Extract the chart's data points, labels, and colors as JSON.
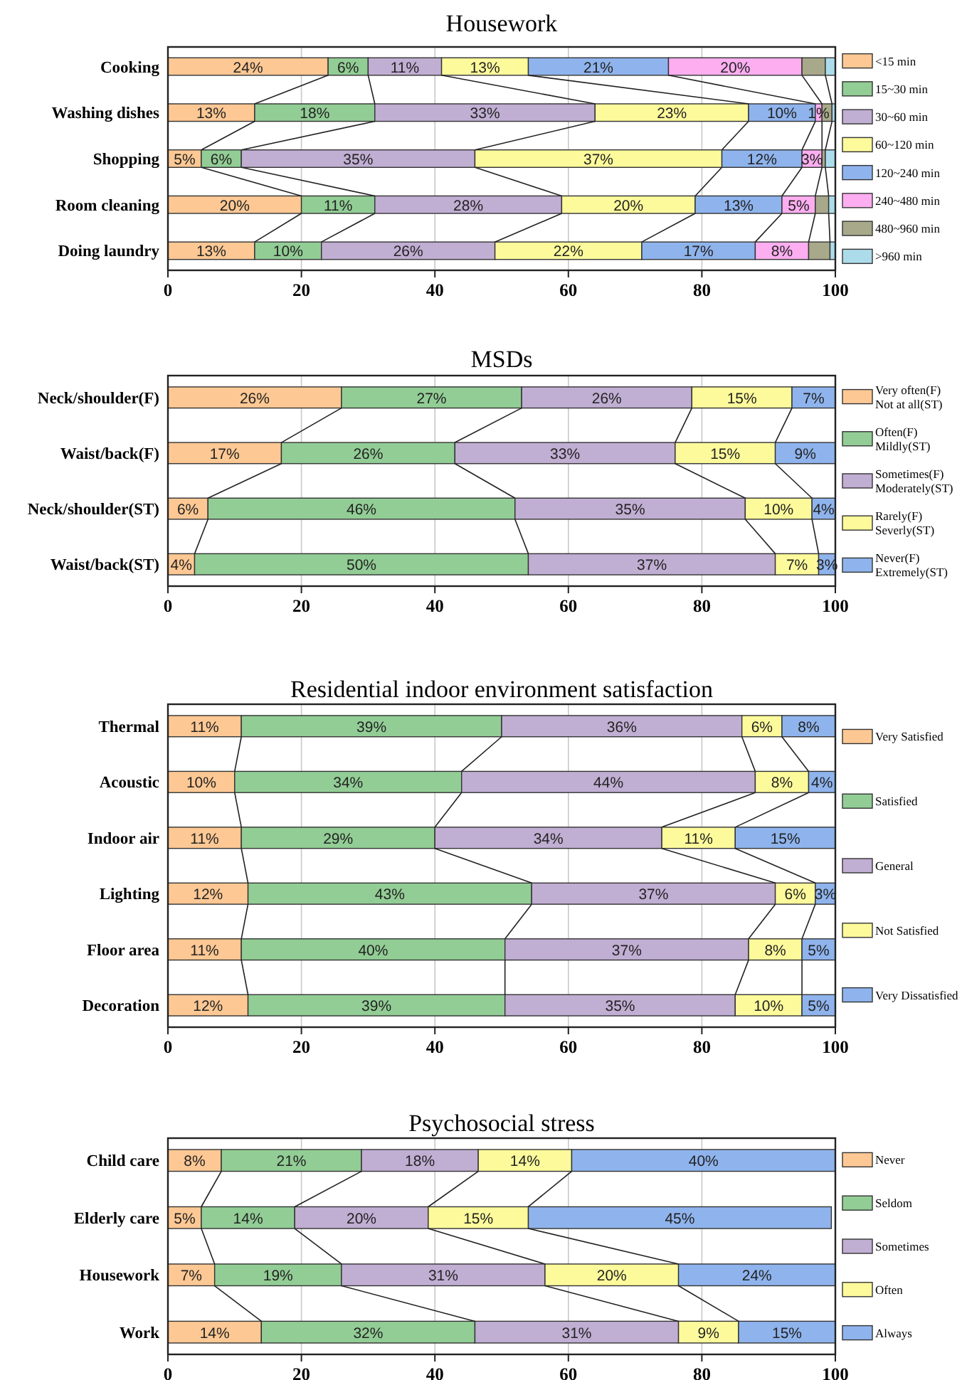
{
  "chart_data": [
    {
      "type": "bar",
      "orientation": "horizontal",
      "stacked": true,
      "title": "Housework",
      "categories": [
        "Cooking",
        "Washing dishes",
        "Shopping",
        "Room cleaning",
        "Doing laundry"
      ],
      "xlim": [
        0,
        100
      ],
      "xticks": [
        0,
        20,
        40,
        60,
        80,
        100
      ],
      "grid": "x",
      "legend": "right",
      "series": [
        {
          "name": "<15 min",
          "color": "#fdc894",
          "values": [
            24,
            13,
            5,
            20,
            13
          ],
          "value_labels": [
            "24%",
            "13%",
            "5%",
            "20%",
            "13%"
          ]
        },
        {
          "name": "15~30 min",
          "color": "#92cd95",
          "values": [
            6,
            18,
            6,
            11,
            10
          ],
          "value_labels": [
            "6%",
            "18%",
            "6%",
            "11%",
            "10%"
          ]
        },
        {
          "name": "30~60 min",
          "color": "#c1aed3",
          "values": [
            11,
            33,
            35,
            28,
            26
          ],
          "value_labels": [
            "11%",
            "33%",
            "35%",
            "28%",
            "26%"
          ]
        },
        {
          "name": "60~120 min",
          "color": "#fdfa9c",
          "values": [
            13,
            23,
            37,
            20,
            22
          ],
          "value_labels": [
            "13%",
            "23%",
            "37%",
            "20%",
            "22%"
          ]
        },
        {
          "name": "120~240 min",
          "color": "#8fb4ed",
          "values": [
            21,
            10,
            12,
            13,
            17
          ],
          "value_labels": [
            "21%",
            "10%",
            "12%",
            "13%",
            "17%"
          ]
        },
        {
          "name": "240~480 min",
          "color": "#fcaef0",
          "values": [
            20,
            1,
            3,
            5,
            8
          ],
          "value_labels": [
            "20%",
            "1%",
            "3%",
            "5%",
            "8%"
          ]
        },
        {
          "name": "480~960 min",
          "color": "#a8a98a",
          "values": [
            3.5,
            1.5,
            0.5,
            2,
            3.2
          ],
          "value_labels": [
            null,
            null,
            null,
            null,
            null
          ]
        },
        {
          "name": ">960 min",
          "color": "#acdcea",
          "values": [
            1.5,
            0.5,
            1.5,
            1,
            0.8
          ],
          "value_labels": [
            null,
            null,
            null,
            null,
            null
          ]
        }
      ]
    },
    {
      "type": "bar",
      "orientation": "horizontal",
      "stacked": true,
      "title": "MSDs",
      "categories": [
        "Neck/shoulder(F)",
        "Waist/back(F)",
        "Neck/shoulder(ST)",
        "Waist/back(ST)"
      ],
      "xlim": [
        0,
        100
      ],
      "xticks": [
        0,
        20,
        40,
        60,
        80,
        100
      ],
      "grid": "x",
      "legend": "right",
      "series": [
        {
          "name": "Very often(F)\nNot at all(ST)",
          "color": "#fdc894",
          "values": [
            26,
            17,
            6,
            4
          ],
          "value_labels": [
            "26%",
            "17%",
            "6%",
            "4%"
          ]
        },
        {
          "name": "Often(F)\nMildly(ST)",
          "color": "#92cd95",
          "values": [
            27,
            26,
            46,
            50
          ],
          "value_labels": [
            "27%",
            "26%",
            "46%",
            "50%"
          ]
        },
        {
          "name": "Sometimes(F)\nModerately(ST)",
          "color": "#c1aed3",
          "values": [
            25.5,
            33,
            34.5,
            37
          ],
          "value_labels": [
            "26%",
            "33%",
            "35%",
            "37%"
          ]
        },
        {
          "name": "Rarely(F)\nSeverly(ST)",
          "color": "#fdfa9c",
          "values": [
            15,
            15,
            10,
            6.5
          ],
          "value_labels": [
            "15%",
            "15%",
            "10%",
            "7%"
          ]
        },
        {
          "name": "Never(F)\nExtremely(ST)",
          "color": "#8fb4ed",
          "values": [
            6.5,
            9,
            3.5,
            2.5
          ],
          "value_labels": [
            "7%",
            "9%",
            "4%",
            "3%"
          ]
        }
      ]
    },
    {
      "type": "bar",
      "orientation": "horizontal",
      "stacked": true,
      "title": "Residential indoor environment satisfaction",
      "categories": [
        "Thermal",
        "Acoustic",
        "Indoor air",
        "Lighting",
        "Floor area",
        "Decoration"
      ],
      "xlim": [
        0,
        100
      ],
      "xticks": [
        0,
        20,
        40,
        60,
        80,
        100
      ],
      "grid": "x",
      "legend": "right",
      "series": [
        {
          "name": "Very Satisfied",
          "color": "#fdc894",
          "values": [
            11,
            10,
            11,
            12,
            11,
            12
          ],
          "value_labels": [
            "11%",
            "10%",
            "11%",
            "12%",
            "11%",
            "12%"
          ]
        },
        {
          "name": "Satisfied",
          "color": "#92cd95",
          "values": [
            39,
            34,
            29,
            42.5,
            39.5,
            38.5
          ],
          "value_labels": [
            "39%",
            "34%",
            "29%",
            "43%",
            "40%",
            "39%"
          ]
        },
        {
          "name": "General",
          "color": "#c1aed3",
          "values": [
            36,
            44,
            34,
            36.5,
            36.5,
            34.5
          ],
          "value_labels": [
            "36%",
            "44%",
            "34%",
            "37%",
            "37%",
            "35%"
          ]
        },
        {
          "name": "Not Satisfied",
          "color": "#fdfa9c",
          "values": [
            6,
            8,
            11,
            6,
            8,
            10
          ],
          "value_labels": [
            "6%",
            "8%",
            "11%",
            "6%",
            "8%",
            "10%"
          ]
        },
        {
          "name": "Very Dissatisfied",
          "color": "#8fb4ed",
          "values": [
            8,
            4,
            15,
            3,
            5,
            5
          ],
          "value_labels": [
            "8%",
            "4%",
            "15%",
            "3%",
            "5%",
            "5%"
          ]
        }
      ]
    },
    {
      "type": "bar",
      "orientation": "horizontal",
      "stacked": true,
      "title": "Psychosocial stress",
      "categories": [
        "Child care",
        "Elderly care",
        "Housework",
        "Work"
      ],
      "xlim": [
        0,
        100
      ],
      "xticks": [
        0,
        20,
        40,
        60,
        80,
        100
      ],
      "grid": "x",
      "legend": "right",
      "series": [
        {
          "name": "Never",
          "color": "#fdc894",
          "values": [
            8,
            5,
            7,
            14
          ],
          "value_labels": [
            "8%",
            "5%",
            "7%",
            "14%"
          ]
        },
        {
          "name": "Seldom",
          "color": "#92cd95",
          "values": [
            21,
            14,
            19,
            32
          ],
          "value_labels": [
            "21%",
            "14%",
            "19%",
            "32%"
          ]
        },
        {
          "name": "Sometimes",
          "color": "#c1aed3",
          "values": [
            17.5,
            20,
            30.5,
            30.5
          ],
          "value_labels": [
            "18%",
            "20%",
            "31%",
            "31%"
          ]
        },
        {
          "name": "Often",
          "color": "#fdfa9c",
          "values": [
            14,
            15,
            20,
            9
          ],
          "value_labels": [
            "14%",
            "15%",
            "20%",
            "9%"
          ]
        },
        {
          "name": "Always",
          "color": "#8fb4ed",
          "values": [
            39.5,
            45.4,
            23.5,
            14.5
          ],
          "value_labels": [
            "40%",
            "45%",
            "24%",
            "15%"
          ]
        }
      ]
    }
  ]
}
